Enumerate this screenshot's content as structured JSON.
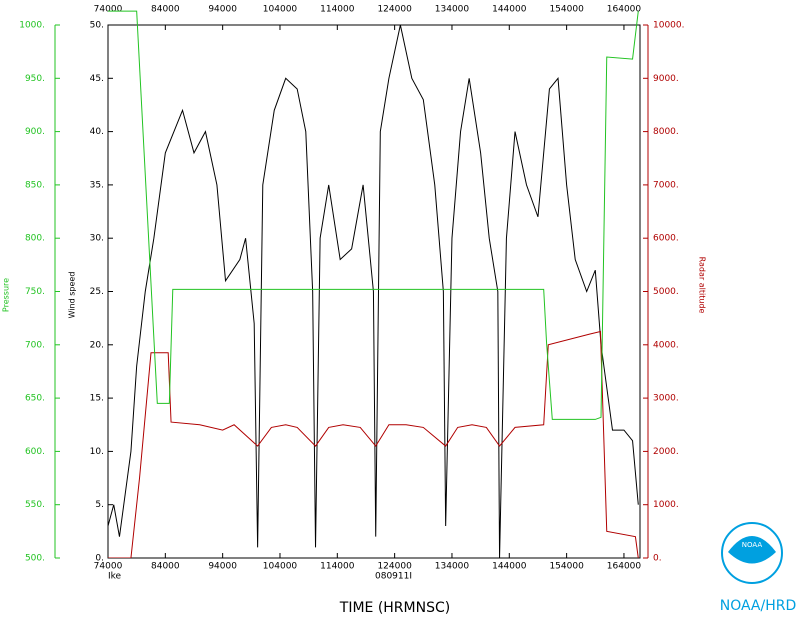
{
  "chart_data": {
    "type": "line",
    "xlabel": "TIME (HRMNSC)",
    "storm": "Ike",
    "flight": "080911I",
    "source": "NOAA/HRD",
    "logo_text": "NOAA",
    "ylabel": "Wind speed",
    "y2label": "Radar altitude",
    "y3label": "Pressure",
    "xlim": [
      74000,
      166800
    ],
    "xticks": [
      74000,
      84000,
      94000,
      104000,
      114000,
      124000,
      134000,
      144000,
      154000,
      164000
    ],
    "ylim": [
      0,
      50
    ],
    "yticks": [
      {
        "value": 0,
        "label": "0."
      },
      {
        "value": 5,
        "label": "5."
      },
      {
        "value": 10,
        "label": "10."
      },
      {
        "value": 15,
        "label": "15."
      },
      {
        "value": 20,
        "label": "20."
      },
      {
        "value": 25,
        "label": "25."
      },
      {
        "value": 30,
        "label": "30."
      },
      {
        "value": 35,
        "label": "35."
      },
      {
        "value": 40,
        "label": "40."
      },
      {
        "value": 45,
        "label": "45."
      },
      {
        "value": 50,
        "label": "50."
      }
    ],
    "y2lim": [
      0,
      10000
    ],
    "y2ticks": [
      {
        "value": 0,
        "label": "0."
      },
      {
        "value": 1000,
        "label": "1000."
      },
      {
        "value": 2000,
        "label": "2000."
      },
      {
        "value": 3000,
        "label": "3000."
      },
      {
        "value": 4000,
        "label": "4000."
      },
      {
        "value": 5000,
        "label": "5000."
      },
      {
        "value": 6000,
        "label": "6000."
      },
      {
        "value": 7000,
        "label": "7000."
      },
      {
        "value": 8000,
        "label": "8000."
      },
      {
        "value": 9000,
        "label": "9000."
      },
      {
        "value": 10000,
        "label": "10000."
      }
    ],
    "y3lim": [
      500,
      1000
    ],
    "y3ticks": [
      {
        "value": 500,
        "label": "500."
      },
      {
        "value": 550,
        "label": "550."
      },
      {
        "value": 600,
        "label": "600."
      },
      {
        "value": 650,
        "label": "650."
      },
      {
        "value": 700,
        "label": "700."
      },
      {
        "value": 750,
        "label": "750."
      },
      {
        "value": 800,
        "label": "800."
      },
      {
        "value": 850,
        "label": "850."
      },
      {
        "value": 900,
        "label": "900."
      },
      {
        "value": 950,
        "label": "950."
      },
      {
        "value": 1000,
        "label": "1000."
      }
    ],
    "series": [
      {
        "color": "#000000",
        "axis": "y",
        "x": [
          74000,
          75000,
          76000,
          77000,
          78000,
          79000,
          80500,
          82000,
          84000,
          87000,
          89000,
          91000,
          93000,
          94500,
          97000,
          98000,
          99500,
          100100,
          101000,
          103000,
          105000,
          107000,
          108500,
          109700,
          110200,
          111000,
          112500,
          114500,
          116500,
          118500,
          120300,
          120700,
          121500,
          123000,
          125000,
          127000,
          129000,
          131000,
          132500,
          132900,
          134000,
          135500,
          137000,
          139000,
          140500,
          142000,
          142300,
          143500,
          145000,
          147000,
          149000,
          151000,
          152500,
          154000,
          155500,
          157500,
          159000,
          160000,
          161000,
          162000,
          164000,
          165500,
          166500
        ],
        "values": [
          3,
          5,
          2,
          6,
          10,
          18,
          25,
          30,
          38,
          42,
          38,
          40,
          35,
          26,
          28,
          30,
          22,
          1,
          35,
          42,
          45,
          44,
          40,
          25,
          1,
          30,
          35,
          28,
          29,
          35,
          25,
          2,
          40,
          45,
          50,
          45,
          43,
          35,
          25,
          3,
          30,
          40,
          45,
          38,
          30,
          25,
          0,
          30,
          40,
          35,
          32,
          44,
          45,
          35,
          28,
          25,
          27,
          20,
          16,
          12,
          12,
          11,
          5
        ]
      },
      {
        "color": "#b00000",
        "axis": "y2",
        "x": [
          74000,
          78000,
          79500,
          81500,
          84500,
          85000,
          90000,
          94000,
          96000,
          100100,
          102500,
          105000,
          107000,
          110200,
          112500,
          115000,
          118000,
          120700,
          123000,
          126000,
          129000,
          132900,
          135000,
          137500,
          140000,
          142300,
          145000,
          150000,
          150800,
          158000,
          159900,
          161000,
          166000,
          166500
        ],
        "values": [
          0,
          0,
          1500,
          3850,
          3850,
          2550,
          2500,
          2400,
          2500,
          2100,
          2450,
          2500,
          2450,
          2100,
          2450,
          2500,
          2450,
          2100,
          2500,
          2500,
          2450,
          2100,
          2450,
          2500,
          2450,
          2100,
          2450,
          2500,
          4000,
          4200,
          4250,
          500,
          400,
          0
        ]
      },
      {
        "color": "#22c322",
        "axis": "y3",
        "x": [
          74000,
          79000,
          82600,
          84700,
          85300,
          150000,
          150500,
          151500,
          159000,
          160000,
          161000,
          165500,
          166500
        ],
        "values": [
          1013,
          1013,
          645,
          645,
          752,
          752,
          702,
          630,
          630,
          632,
          970,
          968,
          1013
        ]
      }
    ]
  }
}
